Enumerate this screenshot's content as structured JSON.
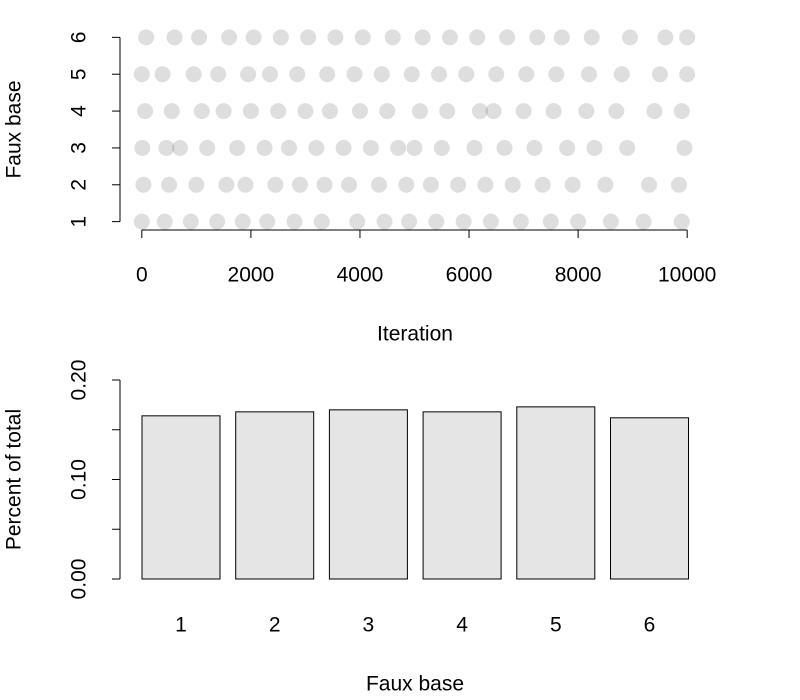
{
  "chart_data": [
    {
      "type": "scatter",
      "xlabel": "Iteration",
      "ylabel": "Faux base",
      "color": "#000000",
      "alpha": 0.13,
      "x": [
        0,
        420,
        900,
        1380,
        1850,
        2300,
        2800,
        3300,
        3950,
        4450,
        4900,
        5400,
        5900,
        6400,
        6950,
        7500,
        8000,
        8600,
        9200,
        9900,
        30,
        500,
        1000,
        1550,
        1900,
        2450,
        2900,
        3350,
        3800,
        4350,
        4850,
        5300,
        5800,
        6300,
        6800,
        7350,
        7900,
        8500,
        9300,
        9850,
        10,
        450,
        700,
        1200,
        1750,
        2250,
        2700,
        3200,
        3700,
        4200,
        4700,
        5000,
        5500,
        6100,
        6650,
        7200,
        7800,
        8300,
        8900,
        9950,
        60,
        550,
        1100,
        1500,
        2000,
        2500,
        3000,
        3450,
        4000,
        4500,
        5100,
        5600,
        6200,
        6450,
        7000,
        7550,
        8150,
        8700,
        9400,
        9900,
        0,
        380,
        950,
        1400,
        1950,
        2350,
        2850,
        3400,
        3900,
        4400,
        4950,
        5450,
        5950,
        6500,
        7050,
        7600,
        8200,
        8800,
        9500,
        10000,
        80,
        600,
        1050,
        1600,
        2050,
        2550,
        3050,
        3550,
        4050,
        4600,
        5150,
        5650,
        6150,
        6700,
        7250,
        7700,
        8250,
        8950,
        9600,
        10000
      ],
      "y": [
        1,
        1,
        1,
        1,
        1,
        1,
        1,
        1,
        1,
        1,
        1,
        1,
        1,
        1,
        1,
        1,
        1,
        1,
        1,
        1,
        2,
        2,
        2,
        2,
        2,
        2,
        2,
        2,
        2,
        2,
        2,
        2,
        2,
        2,
        2,
        2,
        2,
        2,
        2,
        2,
        3,
        3,
        3,
        3,
        3,
        3,
        3,
        3,
        3,
        3,
        3,
        3,
        3,
        3,
        3,
        3,
        3,
        3,
        3,
        3,
        4,
        4,
        4,
        4,
        4,
        4,
        4,
        4,
        4,
        4,
        4,
        4,
        4,
        4,
        4,
        4,
        4,
        4,
        4,
        4,
        5,
        5,
        5,
        5,
        5,
        5,
        5,
        5,
        5,
        5,
        5,
        5,
        5,
        5,
        5,
        5,
        5,
        5,
        5,
        5,
        6,
        6,
        6,
        6,
        6,
        6,
        6,
        6,
        6,
        6,
        6,
        6,
        6,
        6,
        6,
        6,
        6,
        6,
        6,
        6
      ],
      "xlim": [
        -400,
        10400
      ],
      "xticks": [
        0,
        2000,
        4000,
        6000,
        8000,
        10000
      ],
      "ylim": [
        0.8,
        6.2
      ],
      "yticks": [
        1,
        2,
        3,
        4,
        5,
        6
      ]
    },
    {
      "type": "bar",
      "xlabel": "Faux base",
      "ylabel": "Percent of total",
      "color": "#e5e5e5",
      "categories": [
        "1",
        "2",
        "3",
        "4",
        "5",
        "6"
      ],
      "values": [
        0.164,
        0.168,
        0.17,
        0.168,
        0.173,
        0.162
      ],
      "ylim": [
        0,
        0.2
      ],
      "yticks": [
        {
          "value": 0,
          "label": "0.00"
        },
        {
          "value": 0.1,
          "label": "0.10"
        },
        {
          "value": 0.2,
          "label": "0.20"
        }
      ],
      "yminorticks": [
        0.05,
        0.15
      ]
    }
  ]
}
